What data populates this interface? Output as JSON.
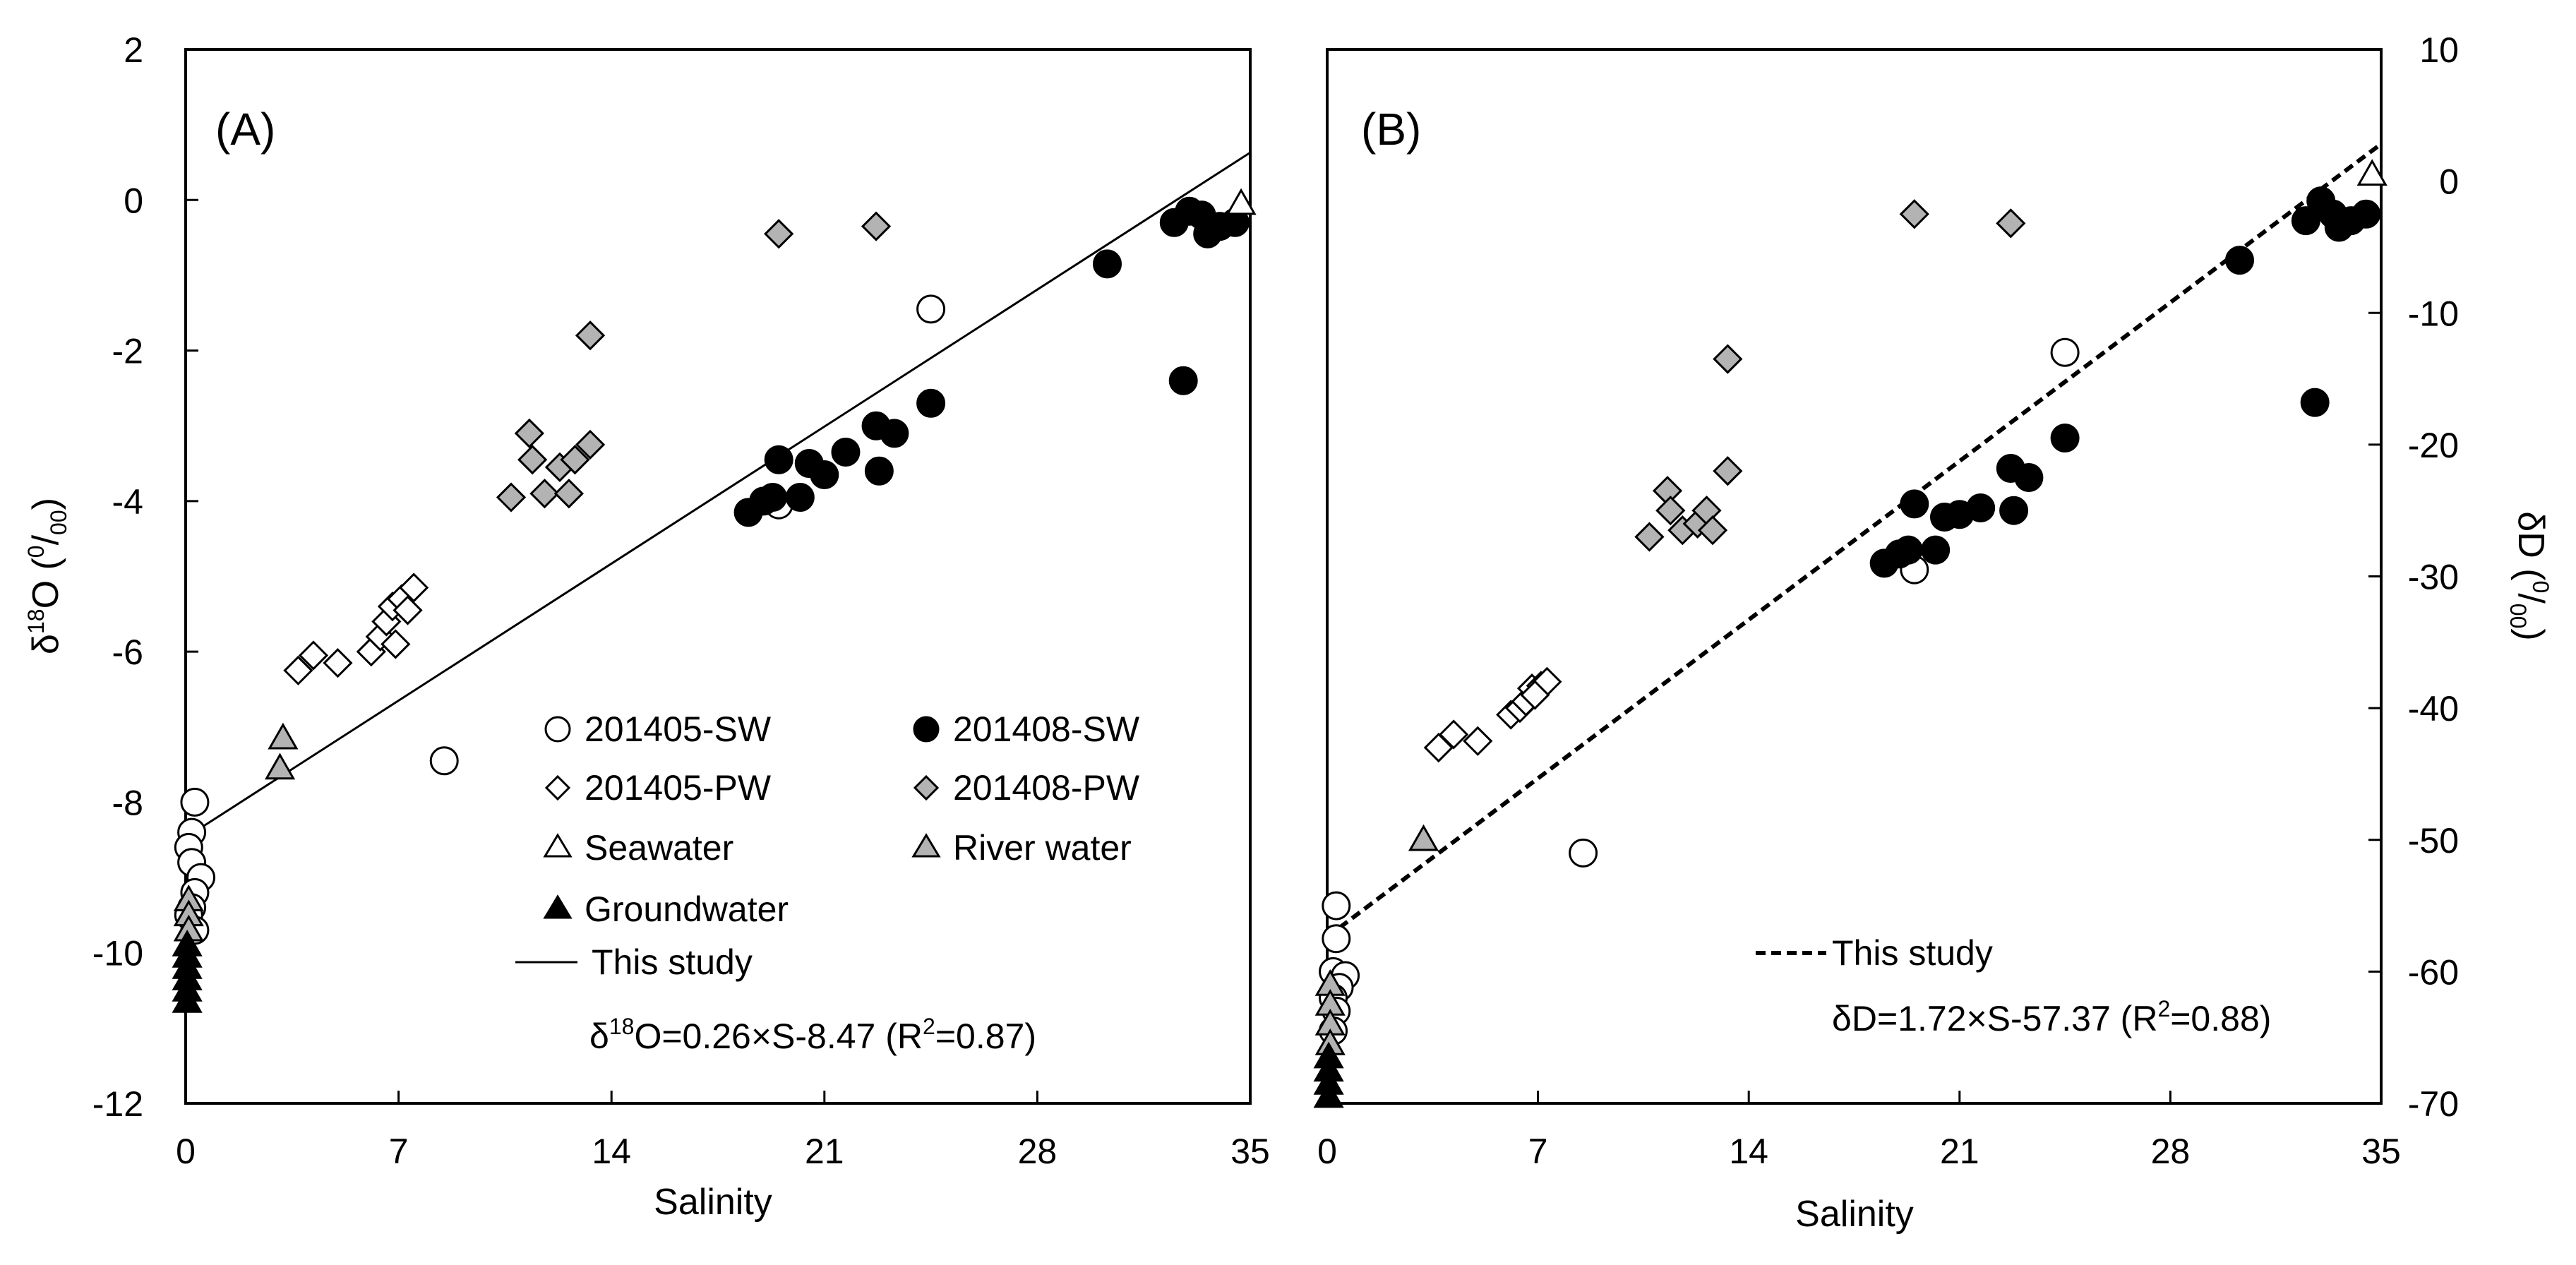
{
  "panels": [
    {
      "id": "A",
      "label": "(A)",
      "xlabel": "Salinity",
      "ylabel": {
        "prefix": "δ",
        "sup": "18",
        "main": "O (",
        "frac_sup": "0",
        "slash": "/",
        "frac_sub": "00",
        "end": ")"
      },
      "legend": {
        "sw2014_05": "201405-SW",
        "sw2014_08": "201408-SW",
        "pw2014_05": "201405-PW",
        "pw2014_08": "201408-PW",
        "seawater": "Seawater",
        "river": "River water",
        "ground": "Groundwater",
        "fit": "This study"
      },
      "equation": {
        "prefix": "δ",
        "sup": "18",
        "body": "O=0.26×S-8.47 (R",
        "r2": "2",
        "end": "=0.87)"
      }
    },
    {
      "id": "B",
      "label": "(B)",
      "xlabel": "Salinity",
      "ylabel": {
        "main": "δD (",
        "frac_sup": "0",
        "slash": "/",
        "frac_sub": "00",
        "end": ")"
      },
      "legend": {
        "fit": "This study"
      },
      "equation": {
        "body": "δD=1.72×S-57.37 (R",
        "r2": "2",
        "end": "=0.88)"
      }
    }
  ],
  "chart_data": [
    {
      "type": "scatter",
      "panel": "A",
      "xlabel": "Salinity",
      "ylabel": "δ18O (‰)",
      "xlim": [
        0,
        35
      ],
      "ylim": [
        -12,
        2
      ],
      "xticks": [
        0,
        7,
        14,
        21,
        28,
        35
      ],
      "yticks": [
        2,
        0,
        -2,
        -4,
        -6,
        -8,
        -10,
        -12
      ],
      "grid": false,
      "series": [
        {
          "name": "201405-SW",
          "marker": "circle-open",
          "points": [
            [
              0.3,
              -8.0
            ],
            [
              0.2,
              -8.4
            ],
            [
              0.1,
              -8.6
            ],
            [
              0.2,
              -8.8
            ],
            [
              0.5,
              -9.0
            ],
            [
              0.3,
              -9.2
            ],
            [
              0.2,
              -9.4
            ],
            [
              0.1,
              -9.5
            ],
            [
              0.3,
              -9.7
            ],
            [
              8.5,
              -7.45
            ],
            [
              24.5,
              -1.45
            ],
            [
              19.5,
              -4.05
            ]
          ]
        },
        {
          "name": "201408-SW",
          "marker": "circle-filled",
          "points": [
            [
              18.5,
              -4.15
            ],
            [
              19.0,
              -4.0
            ],
            [
              19.3,
              -3.95
            ],
            [
              19.5,
              -3.45
            ],
            [
              20.2,
              -3.95
            ],
            [
              20.5,
              -3.5
            ],
            [
              21.0,
              -3.65
            ],
            [
              21.7,
              -3.35
            ],
            [
              22.7,
              -3.0
            ],
            [
              22.8,
              -3.6
            ],
            [
              23.3,
              -3.1
            ],
            [
              24.5,
              -2.7
            ],
            [
              30.3,
              -0.85
            ],
            [
              32.5,
              -0.3
            ],
            [
              33.0,
              -0.15
            ],
            [
              33.4,
              -0.2
            ],
            [
              33.6,
              -0.45
            ],
            [
              34.0,
              -0.35
            ],
            [
              34.5,
              -0.3
            ],
            [
              32.8,
              -2.4
            ]
          ]
        },
        {
          "name": "201405-PW",
          "marker": "diamond-open",
          "points": [
            [
              3.7,
              -6.25
            ],
            [
              4.2,
              -6.05
            ],
            [
              5.0,
              -6.15
            ],
            [
              6.1,
              -6.0
            ],
            [
              6.4,
              -5.8
            ],
            [
              6.6,
              -5.6
            ],
            [
              6.8,
              -5.4
            ],
            [
              7.1,
              -5.3
            ],
            [
              7.3,
              -5.45
            ],
            [
              7.5,
              -5.15
            ],
            [
              6.9,
              -5.9
            ]
          ]
        },
        {
          "name": "201408-PW",
          "marker": "diamond-gray",
          "points": [
            [
              10.7,
              -3.95
            ],
            [
              11.3,
              -3.1
            ],
            [
              11.4,
              -3.45
            ],
            [
              11.8,
              -3.9
            ],
            [
              12.3,
              -3.55
            ],
            [
              12.6,
              -3.9
            ],
            [
              12.8,
              -3.45
            ],
            [
              13.3,
              -3.25
            ],
            [
              13.3,
              -1.8
            ],
            [
              19.5,
              -0.45
            ],
            [
              22.7,
              -0.35
            ]
          ]
        },
        {
          "name": "Seawater",
          "marker": "triangle-open",
          "points": [
            [
              34.7,
              -0.05
            ]
          ]
        },
        {
          "name": "River water",
          "marker": "triangle-gray",
          "points": [
            [
              3.2,
              -7.15
            ],
            [
              3.1,
              -7.55
            ],
            [
              0.1,
              -9.3
            ],
            [
              0.1,
              -9.5
            ],
            [
              0.1,
              -9.7
            ]
          ]
        },
        {
          "name": "Groundwater",
          "marker": "triangle-filled",
          "points": [
            [
              0.05,
              -9.9
            ],
            [
              0.05,
              -10.05
            ],
            [
              0.05,
              -10.2
            ],
            [
              0.05,
              -10.35
            ],
            [
              0.05,
              -10.5
            ],
            [
              0.05,
              -10.65
            ]
          ]
        }
      ],
      "fit": {
        "name": "This study",
        "slope": 0.26,
        "intercept": -8.47,
        "x_range": [
          0,
          35
        ],
        "style": "solid"
      }
    },
    {
      "type": "scatter",
      "panel": "B",
      "xlabel": "Salinity",
      "ylabel": "δD (‰)",
      "xlim": [
        0,
        35
      ],
      "ylim": [
        -70,
        10
      ],
      "xticks": [
        0,
        7,
        14,
        21,
        28,
        35
      ],
      "yticks": [
        10,
        0,
        -10,
        -20,
        -30,
        -40,
        -50,
        -60,
        -70
      ],
      "grid": false,
      "series": [
        {
          "name": "201405-SW",
          "marker": "circle-open",
          "points": [
            [
              0.3,
              -55.0
            ],
            [
              0.3,
              -57.5
            ],
            [
              0.2,
              -60.0
            ],
            [
              0.6,
              -60.3
            ],
            [
              0.4,
              -61.2
            ],
            [
              0.2,
              -62.0
            ],
            [
              0.3,
              -63.0
            ],
            [
              0.2,
              -64.5
            ],
            [
              8.5,
              -51.0
            ],
            [
              24.5,
              -13.0
            ],
            [
              19.5,
              -29.5
            ]
          ]
        },
        {
          "name": "201408-SW",
          "marker": "circle-filled",
          "points": [
            [
              18.5,
              -29.0
            ],
            [
              19.0,
              -28.3
            ],
            [
              19.3,
              -28.0
            ],
            [
              19.5,
              -24.5
            ],
            [
              20.2,
              -28.0
            ],
            [
              20.5,
              -25.5
            ],
            [
              21.0,
              -25.3
            ],
            [
              21.7,
              -24.8
            ],
            [
              22.7,
              -21.8
            ],
            [
              22.8,
              -25.0
            ],
            [
              23.3,
              -22.5
            ],
            [
              24.5,
              -19.5
            ],
            [
              30.3,
              -6.0
            ],
            [
              32.5,
              -3.0
            ],
            [
              33.0,
              -1.5
            ],
            [
              33.4,
              -2.5
            ],
            [
              33.6,
              -3.5
            ],
            [
              34.0,
              -3.0
            ],
            [
              34.5,
              -2.5
            ],
            [
              32.8,
              -16.8
            ]
          ]
        },
        {
          "name": "201405-PW",
          "marker": "diamond-open",
          "points": [
            [
              3.7,
              -43.0
            ],
            [
              4.2,
              -42.0
            ],
            [
              5.0,
              -42.5
            ],
            [
              6.1,
              -40.5
            ],
            [
              6.4,
              -40.0
            ],
            [
              6.6,
              -39.5
            ],
            [
              6.8,
              -38.5
            ],
            [
              7.1,
              -38.3
            ],
            [
              7.3,
              -38.0
            ],
            [
              6.9,
              -39.0
            ]
          ]
        },
        {
          "name": "201408-PW",
          "marker": "diamond-gray",
          "points": [
            [
              10.7,
              -27.0
            ],
            [
              11.3,
              -23.5
            ],
            [
              11.4,
              -25.0
            ],
            [
              11.8,
              -26.5
            ],
            [
              12.3,
              -26.0
            ],
            [
              12.6,
              -25.0
            ],
            [
              12.8,
              -26.5
            ],
            [
              13.3,
              -22.0
            ],
            [
              13.3,
              -13.5
            ],
            [
              19.5,
              -2.5
            ],
            [
              22.7,
              -3.2
            ]
          ]
        },
        {
          "name": "Seawater",
          "marker": "triangle-open",
          "points": [
            [
              34.7,
              0.5
            ]
          ]
        },
        {
          "name": "River water",
          "marker": "triangle-gray",
          "points": [
            [
              3.2,
              -50.0
            ],
            [
              0.1,
              -61.0
            ],
            [
              0.1,
              -62.5
            ],
            [
              0.1,
              -64.0
            ],
            [
              0.1,
              -65.5
            ]
          ]
        },
        {
          "name": "Groundwater",
          "marker": "triangle-filled",
          "points": [
            [
              0.05,
              -66.5
            ],
            [
              0.05,
              -67.5
            ],
            [
              0.05,
              -68.5
            ],
            [
              0.05,
              -69.5
            ]
          ]
        }
      ],
      "fit": {
        "name": "This study",
        "slope": 1.72,
        "intercept": -57.37,
        "x_range": [
          0,
          35
        ],
        "style": "dashed"
      }
    }
  ]
}
